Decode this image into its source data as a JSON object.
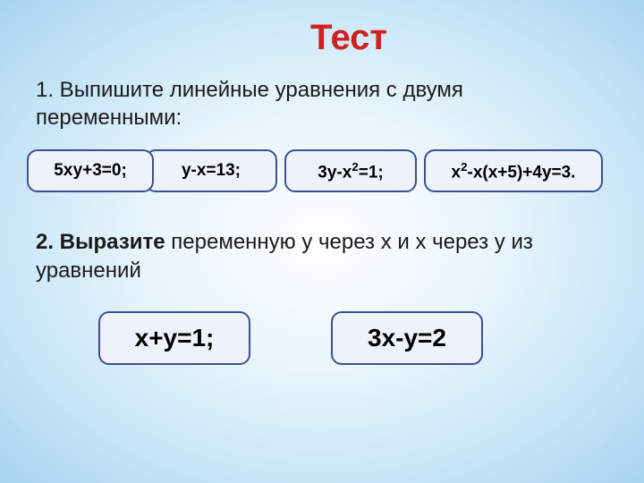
{
  "title": "Тест",
  "question1": "1. Выпишите линейные уравнения с двумя переменными:",
  "options": {
    "a": "5ху+3=0;",
    "b": "у-х=13;",
    "c_pre": "3у-х",
    "c_sup": "2",
    "c_post": "=1;",
    "d_pre": "х",
    "d_sup": "2",
    "d_post": "-х(х+5)+4у=3."
  },
  "question2_prefix": "2. Выразите",
  "question2_rest": " переменную  у через х  и х через у из уравнений",
  "equations": {
    "e1": "х+у=1;",
    "e2": "3х-у=2"
  },
  "colors": {
    "title": "#d02020",
    "btn_bg": "#eef2fa",
    "btn_border": "#3a5090",
    "text": "#1a1a1a"
  },
  "fonts": {
    "title_size": 40,
    "question_size": 24,
    "option_size": 19,
    "equation_size": 28
  }
}
